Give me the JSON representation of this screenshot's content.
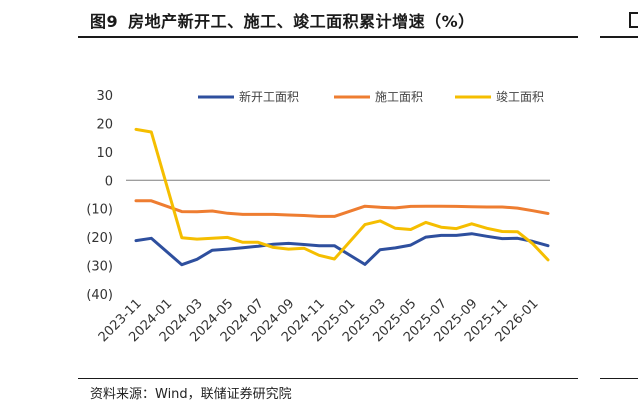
{
  "header": {
    "fig_num": "图9",
    "title": "房地产新开工、施工、竣工面积累计增速（%）"
  },
  "footer": {
    "source": "资料来源：Wind，联储证券研究院"
  },
  "colors": {
    "series1": "#2e4f9e",
    "series2": "#ee7d31",
    "series3": "#f5be00",
    "axis": "#7f7f7f"
  },
  "chart_data": {
    "type": "line",
    "ylim": [
      -40,
      30
    ],
    "yticks": [
      30,
      20,
      10,
      0,
      -10,
      -20,
      -30,
      -40
    ],
    "ytick_labels": [
      "30",
      "20",
      "10",
      "0",
      "(10)",
      "(20)",
      "(30)",
      "(40)"
    ],
    "x": [
      "2023-11",
      "2023-12",
      "2024-01",
      "2024-02",
      "2024-03",
      "2024-04",
      "2024-05",
      "2024-06",
      "2024-07",
      "2024-08",
      "2024-09",
      "2024-10",
      "2024-11",
      "2024-12",
      "2025-01",
      "2025-02",
      "2025-03",
      "2025-04",
      "2025-05",
      "2025-06",
      "2025-07",
      "2025-08",
      "2025-09",
      "2025-10",
      "2025-11",
      "2025-12",
      "2026-01",
      "2026-02"
    ],
    "xtick_labels": [
      "2023-11",
      "2024-01",
      "2024-03",
      "2024-05",
      "2024-07",
      "2024-09",
      "2024-11",
      "2025-01",
      "2025-03",
      "2025-05",
      "2025-07",
      "2025-09",
      "2025-11",
      "2026-01"
    ],
    "legend_position": "top-right",
    "series": [
      {
        "name": "新开工面积",
        "values": [
          -21.2,
          -20.4,
          null,
          -29.7,
          -27.8,
          -24.6,
          -24.2,
          -23.7,
          -23.2,
          -22.5,
          -22.2,
          -22.6,
          -23.0,
          -23.0,
          null,
          -29.6,
          -24.4,
          -23.8,
          -22.8,
          -20.0,
          -19.4,
          -19.4,
          -18.8,
          -19.7,
          -20.5,
          -20.4,
          -21.5,
          -23.0
        ]
      },
      {
        "name": "施工面积",
        "values": [
          -7.2,
          -7.2,
          null,
          -11.0,
          -11.1,
          -10.8,
          -11.6,
          -12.0,
          -12.0,
          -12.0,
          -12.2,
          -12.4,
          -12.7,
          -12.7,
          null,
          -9.1,
          -9.5,
          -9.7,
          -9.2,
          -9.1,
          -9.1,
          -9.2,
          -9.3,
          -9.4,
          -9.4,
          -9.8,
          -10.7,
          -11.7
        ]
      },
      {
        "name": "竣工面积",
        "values": [
          17.9,
          17.0,
          null,
          -20.2,
          -20.7,
          -20.4,
          -20.1,
          -21.8,
          -21.8,
          -23.6,
          -24.2,
          -23.9,
          -26.4,
          -27.7,
          null,
          -15.6,
          -14.3,
          -16.9,
          -17.3,
          -14.8,
          -16.5,
          -17.0,
          -15.3,
          -16.9,
          -18.0,
          -18.1,
          -22.3,
          -28.0
        ]
      }
    ]
  }
}
